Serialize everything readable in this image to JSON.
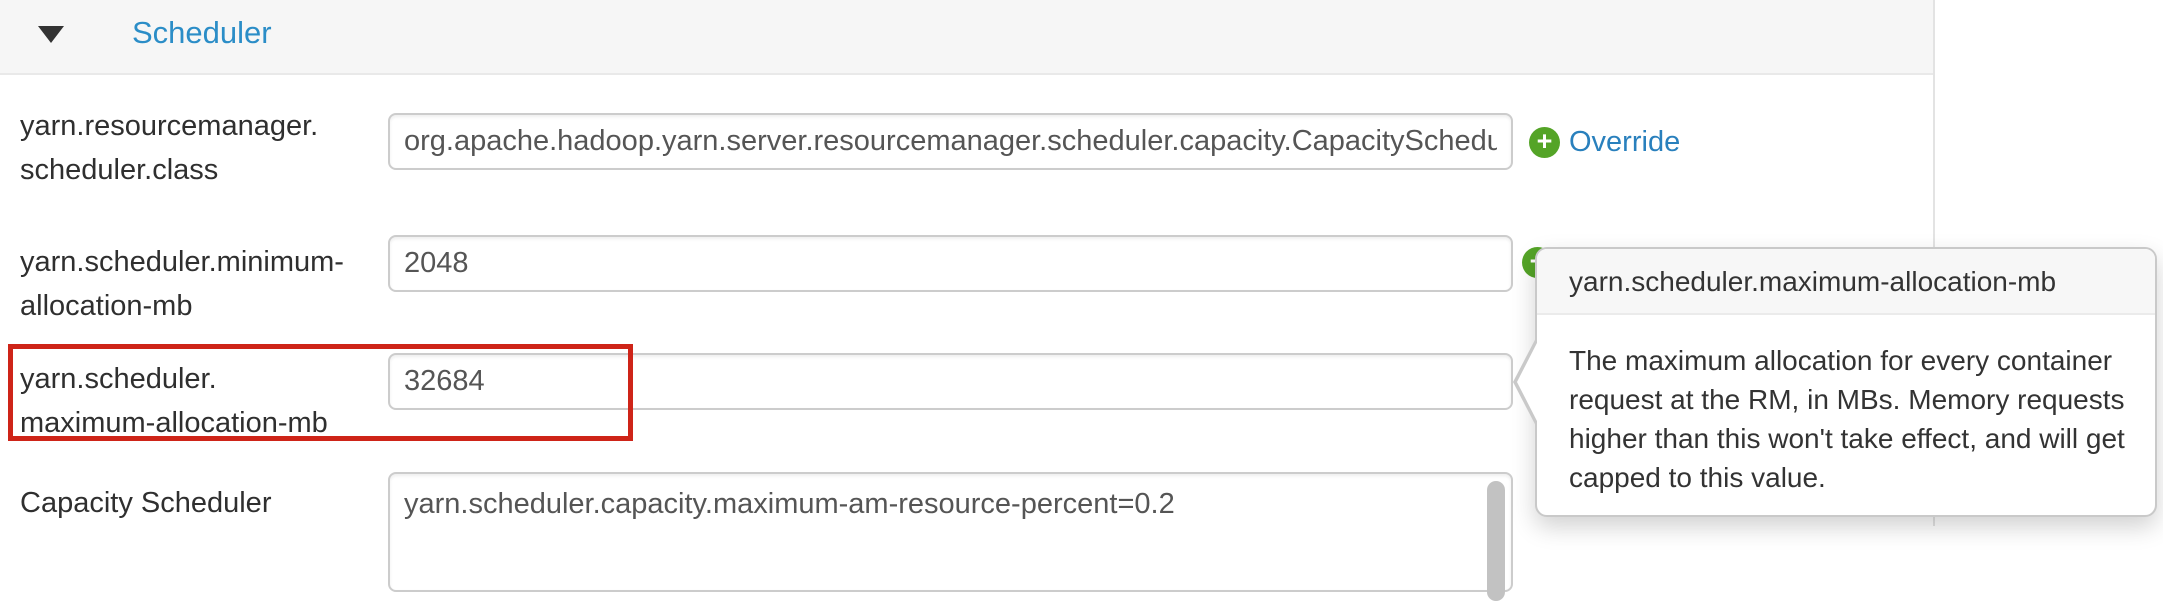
{
  "section": {
    "title": "Scheduler"
  },
  "properties": [
    {
      "label_lines": [
        "yarn.resourcemanager.",
        "scheduler.class"
      ],
      "value": "org.apache.hadoop.yarn.server.resourcemanager.scheduler.capacity.CapacityScheduler"
    },
    {
      "label_lines": [
        "yarn.scheduler.minimum-",
        "allocation-mb"
      ],
      "value": "2048"
    },
    {
      "label_lines": [
        "yarn.scheduler.",
        "maximum-allocation-mb"
      ],
      "value": "32684",
      "highlighted": "true"
    },
    {
      "label_lines": [
        "Capacity Scheduler"
      ],
      "value": "yarn.scheduler.capacity.maximum-am-resource-percent=0.2"
    }
  ],
  "override": {
    "label": "Override"
  },
  "icons": {
    "plus": "+",
    "caret_down": "▼"
  },
  "tooltip": {
    "title": "yarn.scheduler.maximum-allocation-mb",
    "body": "The maximum allocation for every container request at the RM, in MBs. Memory requests higher than this won't take effect, and will get capped to this value."
  },
  "colors": {
    "section_title_blue": "#2b8dc7",
    "link_blue": "#2980bd",
    "override_green": "#54a427",
    "highlight_red": "#ce2418",
    "header_band_gray": "#f6f6f6"
  }
}
